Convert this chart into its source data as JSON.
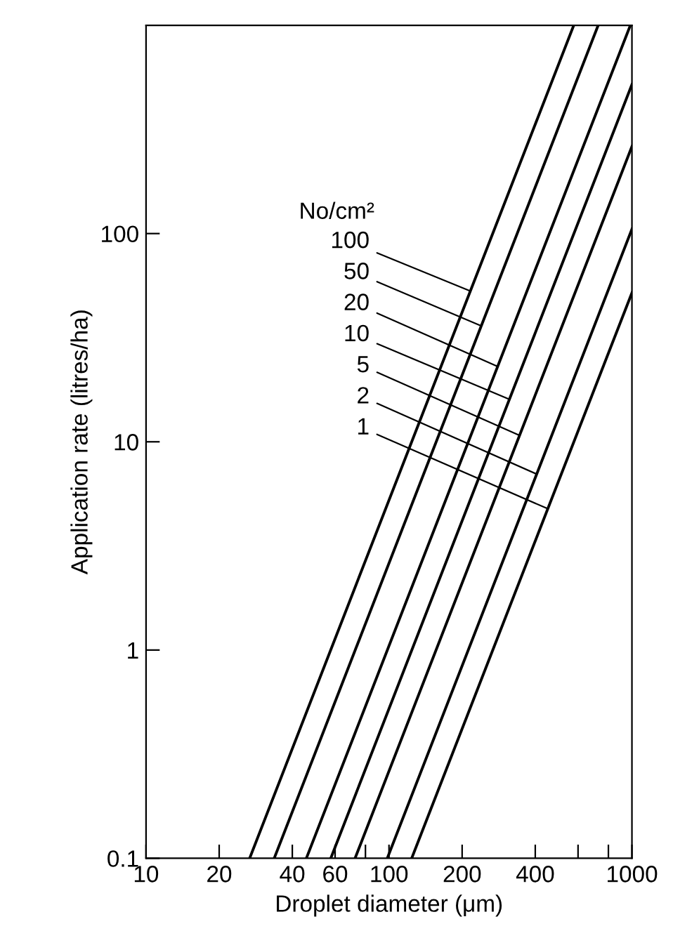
{
  "chart_data": {
    "type": "line",
    "xlabel": "Droplet diameter (μm)",
    "ylabel": "Application rate (litres/ha)",
    "log": "xy",
    "xlim": [
      10,
      1000
    ],
    "ylim": [
      0.1,
      1000
    ],
    "xticks": [
      10,
      20,
      40,
      60,
      {
        "value": 80,
        "label": null
      },
      100,
      200,
      400,
      {
        "value": 600,
        "label": null
      },
      {
        "value": 800,
        "label": null
      },
      1000
    ],
    "yticks": [
      0.1,
      1,
      10,
      100
    ],
    "grid": false,
    "legend": false,
    "marker": "none",
    "line_style": "solid",
    "series": [
      {
        "color": "#000000",
        "x": [
          26.7,
          576
        ],
        "values": [
          0.1,
          1000
        ]
      },
      {
        "color": "#000000",
        "x": [
          33.7,
          726
        ],
        "values": [
          0.1,
          1000
        ]
      },
      {
        "color": "#000000",
        "x": [
          45.7,
          985
        ],
        "values": [
          0.1,
          1000
        ]
      },
      {
        "color": "#000000",
        "x": [
          57.6,
          1000
        ],
        "values": [
          0.1,
          520
        ]
      },
      {
        "color": "#000000",
        "x": [
          72.5,
          1000
        ],
        "values": [
          0.1,
          262
        ]
      },
      {
        "color": "#000000",
        "x": [
          98.4,
          1000
        ],
        "values": [
          0.1,
          105
        ]
      },
      {
        "color": "#000000",
        "x": [
          124,
          1000
        ],
        "values": [
          0.1,
          52
        ]
      }
    ],
    "annotations": [
      "No/cm²",
      {
        "text": "100",
        "x": 216,
        "y": 53
      },
      {
        "text": "50",
        "x": 240,
        "y": 36
      },
      {
        "text": "20",
        "x": 280,
        "y": 23
      },
      {
        "text": "10",
        "x": 313,
        "y": 16
      },
      {
        "text": "5",
        "x": 340,
        "y": 10.8
      },
      {
        "text": "2",
        "x": 405,
        "y": 7
      },
      {
        "text": "1",
        "x": 445,
        "y": 4.8
      }
    ]
  }
}
